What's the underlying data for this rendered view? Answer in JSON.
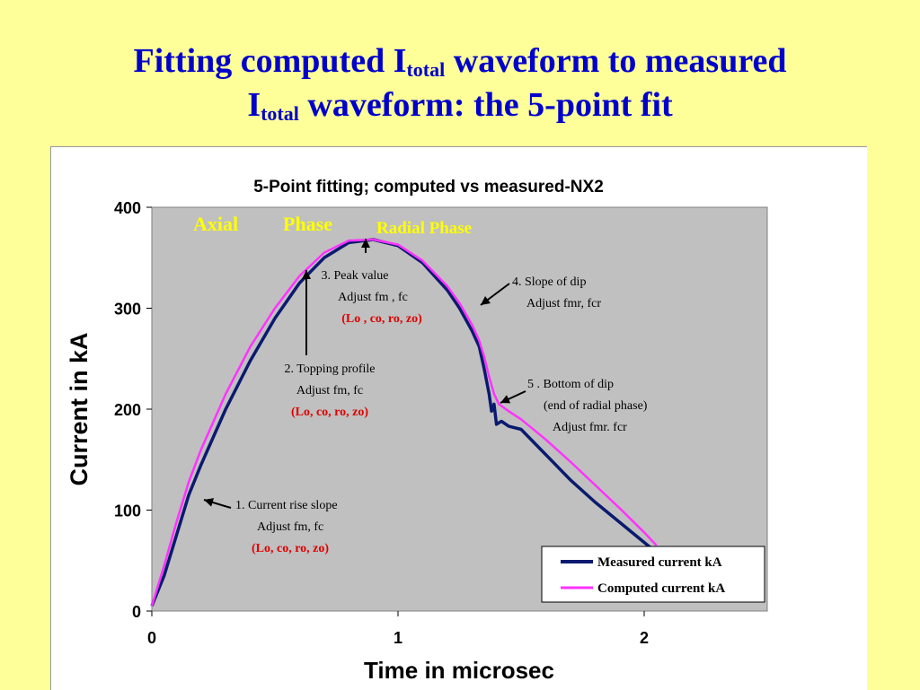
{
  "slide": {
    "title_line1_prefix": "Fitting computed I",
    "title_sub1": "total",
    "title_line1_suffix": " waveform to measured",
    "title_line2_prefix": "I",
    "title_sub2": "total",
    "title_line2_suffix": " waveform: the 5-point fit"
  },
  "chart_data": {
    "type": "line",
    "title": "5-Point fitting; computed vs measured-NX2",
    "xlabel": "Time in microsec",
    "ylabel": "Current in kA",
    "xlim": [
      0,
      2.5
    ],
    "ylim": [
      0,
      400
    ],
    "x_ticks": [
      "0",
      "1",
      "2"
    ],
    "y_ticks": [
      "0",
      "100",
      "200",
      "300",
      "400"
    ],
    "grid": false,
    "legend_position": "bottom-right",
    "colors": {
      "measured": "#0A1A6E",
      "computed": "#FF33FF",
      "plot_bg": "#C0C0C0",
      "phase_label": "#FFFF00",
      "param_text": "#E00000"
    },
    "phase_labels": [
      "Axial",
      "Phase",
      "Radial Phase"
    ],
    "series": [
      {
        "name": "Measured current kA",
        "x": [
          0,
          0.05,
          0.1,
          0.15,
          0.2,
          0.3,
          0.4,
          0.5,
          0.6,
          0.7,
          0.8,
          0.9,
          1.0,
          1.1,
          1.2,
          1.25,
          1.3,
          1.33,
          1.35,
          1.37,
          1.38,
          1.39,
          1.4,
          1.42,
          1.45,
          1.5,
          1.6,
          1.7,
          1.8,
          1.9,
          2.0,
          2.05
        ],
        "y": [
          5,
          35,
          75,
          115,
          145,
          200,
          248,
          290,
          325,
          350,
          365,
          368,
          362,
          345,
          318,
          300,
          278,
          262,
          240,
          215,
          198,
          205,
          185,
          188,
          183,
          180,
          155,
          130,
          108,
          88,
          68,
          58
        ]
      },
      {
        "name": "Computed current kA",
        "x": [
          0,
          0.05,
          0.1,
          0.15,
          0.2,
          0.3,
          0.4,
          0.5,
          0.6,
          0.7,
          0.8,
          0.9,
          1.0,
          1.1,
          1.2,
          1.25,
          1.3,
          1.33,
          1.35,
          1.37,
          1.39,
          1.41,
          1.45,
          1.5,
          1.6,
          1.7,
          1.8,
          1.9,
          2.0,
          2.05
        ],
        "y": [
          5,
          45,
          88,
          128,
          160,
          215,
          262,
          300,
          332,
          355,
          367,
          368,
          363,
          347,
          322,
          305,
          284,
          268,
          252,
          232,
          215,
          205,
          198,
          190,
          170,
          148,
          125,
          102,
          78,
          65
        ]
      }
    ],
    "annotations": [
      {
        "lines": [
          "1. Current rise slope",
          "Adjust fm, fc"
        ],
        "params": "(Lo, co, ro, zo)"
      },
      {
        "lines": [
          "2. Topping profile",
          "Adjust fm, fc"
        ],
        "params": "(Lo, co, ro, zo)"
      },
      {
        "lines": [
          "3. Peak value",
          "Adjust fm , fc"
        ],
        "params": "(Lo , co, ro, zo)"
      },
      {
        "lines": [
          "4. Slope of dip",
          "Adjust fmr, fcr"
        ],
        "params": ""
      },
      {
        "lines": [
          "5 . Bottom of dip",
          "(end of radial phase)",
          "Adjust fmr. fcr"
        ],
        "params": ""
      }
    ]
  }
}
